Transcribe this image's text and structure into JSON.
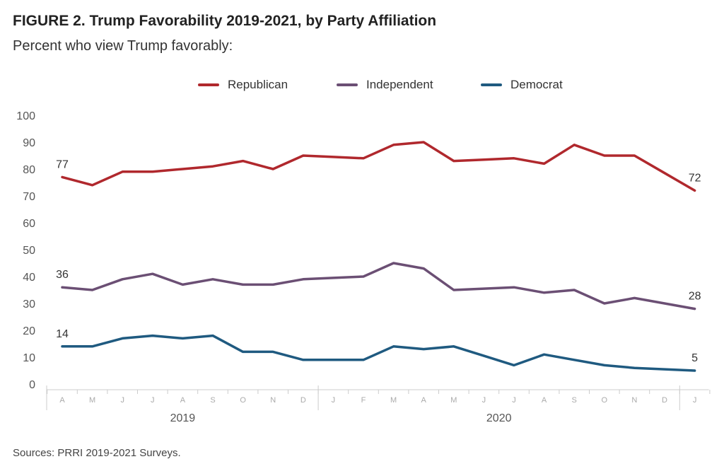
{
  "title": "FIGURE 2. Trump Favorability 2019-2021, by Party Affiliation",
  "subtitle": "Percent who view Trump favorably:",
  "source": "Sources: PRRI 2019-2021 Surveys.",
  "chart_data": {
    "type": "line",
    "title": "FIGURE 2. Trump Favorability 2019-2021, by Party Affiliation",
    "subtitle": "Percent who view Trump favorably:",
    "xlabel": "",
    "ylabel": "",
    "ylim": [
      0,
      100
    ],
    "yticks": [
      0,
      10,
      20,
      30,
      40,
      50,
      60,
      70,
      80,
      90,
      100
    ],
    "grid": false,
    "legend": "top-center",
    "x": [
      "A",
      "M",
      "J",
      "J",
      "A",
      "S",
      "O",
      "N",
      "D",
      "J",
      "F",
      "M",
      "A",
      "M",
      "J",
      "J",
      "A",
      "S",
      "O",
      "N",
      "D",
      "J"
    ],
    "year_groups": [
      {
        "label": "2019",
        "start": 0,
        "end": 8
      },
      {
        "label": "2020",
        "start": 9,
        "end": 20
      }
    ],
    "series": [
      {
        "name": "Republican",
        "color": "#b0282d",
        "values": [
          77,
          74,
          79,
          79,
          80,
          81,
          83,
          80,
          85,
          84.5,
          84,
          89,
          90,
          83,
          83.5,
          84,
          82,
          89,
          85,
          85,
          78.5,
          72
        ]
      },
      {
        "name": "Independent",
        "color": "#6b4f74",
        "values": [
          36,
          35,
          39,
          41,
          37,
          39,
          37,
          37,
          39,
          39.5,
          40,
          45,
          43,
          35,
          35.5,
          36,
          34,
          35,
          30,
          32,
          30,
          28
        ]
      },
      {
        "name": "Democrat",
        "color": "#1f5a80",
        "values": [
          14,
          14,
          17,
          18,
          17,
          18,
          12,
          12,
          9,
          9,
          9,
          14,
          13,
          14,
          10.5,
          7,
          11,
          9,
          7,
          6,
          5.5,
          5
        ]
      }
    ],
    "data_labels": [
      {
        "series": "Republican",
        "index": 0,
        "text": "77"
      },
      {
        "series": "Republican",
        "index": 21,
        "text": "72"
      },
      {
        "series": "Independent",
        "index": 0,
        "text": "36"
      },
      {
        "series": "Independent",
        "index": 21,
        "text": "28"
      },
      {
        "series": "Democrat",
        "index": 0,
        "text": "14"
      },
      {
        "series": "Democrat",
        "index": 21,
        "text": "5"
      }
    ]
  }
}
